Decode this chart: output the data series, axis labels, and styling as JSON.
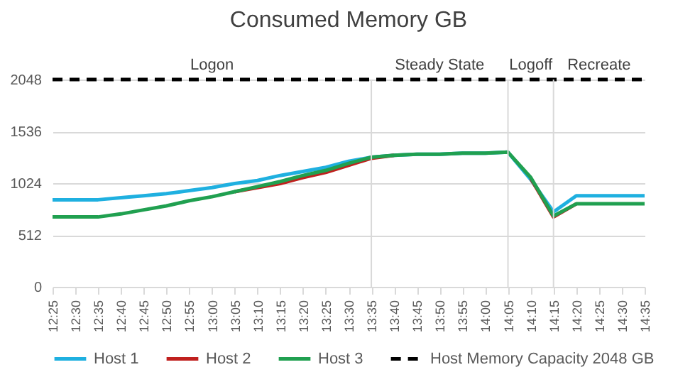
{
  "chart_data": {
    "type": "line",
    "title": "Consumed Memory GB",
    "categories": [
      "12:25",
      "12:30",
      "12:35",
      "12:40",
      "12:45",
      "12:50",
      "12:55",
      "13:00",
      "13:05",
      "13:10",
      "13:15",
      "13:20",
      "13:25",
      "13:30",
      "13:35",
      "13:40",
      "13:45",
      "13:50",
      "13:55",
      "14:00",
      "14:05",
      "14:10",
      "14:15",
      "14:20",
      "14:25",
      "14:30",
      "14:35"
    ],
    "series": [
      {
        "name": "Host 1",
        "color": "#1fb0e0",
        "values": [
          860,
          860,
          860,
          880,
          900,
          920,
          950,
          980,
          1020,
          1050,
          1100,
          1140,
          1180,
          1240,
          1280,
          1300,
          1310,
          1310,
          1320,
          1320,
          1330,
          1060,
          740,
          900,
          900,
          900,
          900
        ]
      },
      {
        "name": "Host 2",
        "color": "#c0201e",
        "values": [
          null,
          null,
          null,
          null,
          null,
          null,
          null,
          null,
          940,
          980,
          1020,
          1080,
          1130,
          1200,
          1270,
          1300,
          null,
          null,
          null,
          null,
          null,
          1070,
          690,
          820,
          null,
          null,
          null
        ]
      },
      {
        "name": "Host 3",
        "color": "#20a050",
        "values": [
          690,
          690,
          690,
          720,
          760,
          800,
          850,
          890,
          940,
          990,
          1040,
          1100,
          1150,
          1220,
          1280,
          1300,
          1310,
          1310,
          1320,
          1320,
          1330,
          1080,
          700,
          820,
          820,
          820,
          820
        ]
      },
      {
        "name": "Host Memory Capacity 2048 GB",
        "color": "#000000",
        "line_style": "dashed",
        "values": [
          2048,
          2048,
          2048,
          2048,
          2048,
          2048,
          2048,
          2048,
          2048,
          2048,
          2048,
          2048,
          2048,
          2048,
          2048,
          2048,
          2048,
          2048,
          2048,
          2048,
          2048,
          2048,
          2048,
          2048,
          2048,
          2048,
          2048
        ]
      }
    ],
    "ylim": [
      0,
      2048
    ],
    "yticks": [
      0,
      512,
      1024,
      1536,
      2048
    ],
    "grid": "y",
    "legend": "bottom",
    "line_style": "solid",
    "ref_lines": [
      {
        "axis": "x",
        "value": "13:35"
      },
      {
        "axis": "x",
        "value": "14:05"
      },
      {
        "axis": "x",
        "value": "14:15"
      }
    ],
    "annotations": [
      {
        "text": "Logon",
        "x": "13:00",
        "y": 2048
      },
      {
        "text": "Steady State",
        "x": "13:50",
        "y": 2048
      },
      {
        "text": "Logoff",
        "x": "14:10",
        "y": 2048
      },
      {
        "text": "Recreate",
        "x": "14:25",
        "y": 2048
      }
    ]
  }
}
